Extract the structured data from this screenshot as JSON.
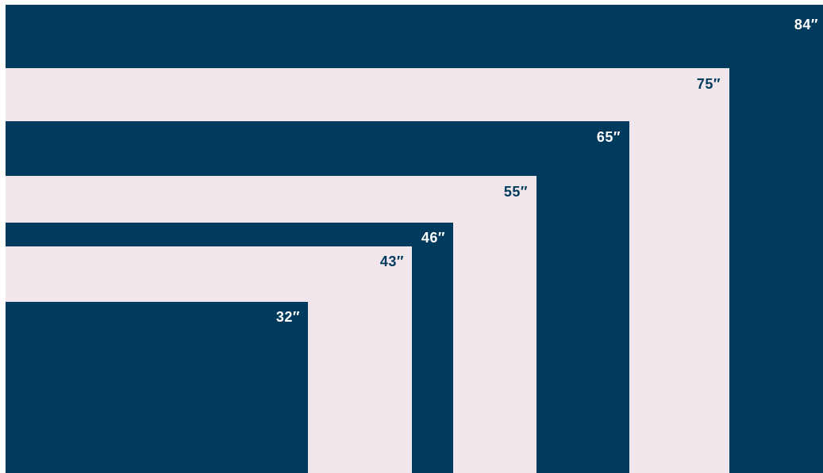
{
  "colors": {
    "dark": "#003a5c",
    "light": "#f1e6ec"
  },
  "screens": [
    {
      "label": "84″",
      "tone": "dark"
    },
    {
      "label": "75″",
      "tone": "light"
    },
    {
      "label": "65″",
      "tone": "dark"
    },
    {
      "label": "55″",
      "tone": "light"
    },
    {
      "label": "46″",
      "tone": "dark"
    },
    {
      "label": "43″",
      "tone": "light"
    },
    {
      "label": "32″",
      "tone": "dark"
    }
  ]
}
